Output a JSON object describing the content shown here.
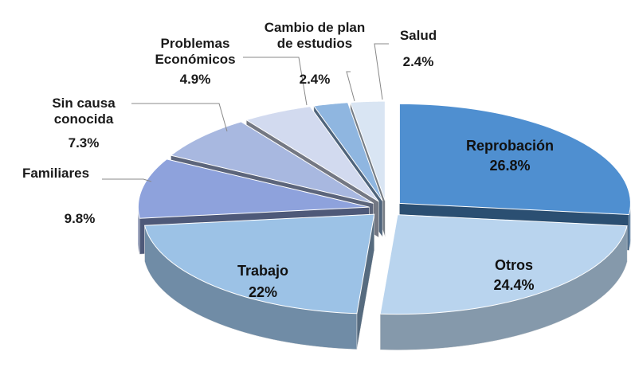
{
  "chart_data": {
    "type": "pie",
    "categories": [
      "Reprobación",
      "Otros",
      "Trabajo",
      "Familiares",
      "Sin causa conocida",
      "Problemas Económicos",
      "Cambio de plan de estudios",
      "Salud"
    ],
    "values": [
      26.8,
      24.4,
      22,
      9.8,
      7.3,
      4.9,
      2.4,
      2.4
    ],
    "value_labels": [
      "26.8%",
      "24.4%",
      "22%",
      "9.8%",
      "7.3%",
      "4.9%",
      "2.4%",
      "2.4%"
    ],
    "colors": [
      "#4f8fd0",
      "#b9d4ee",
      "#9cc2e6",
      "#8ea2dc",
      "#a8b8e0",
      "#d2daef",
      "#8fb6e0",
      "#d9e5f3"
    ]
  }
}
